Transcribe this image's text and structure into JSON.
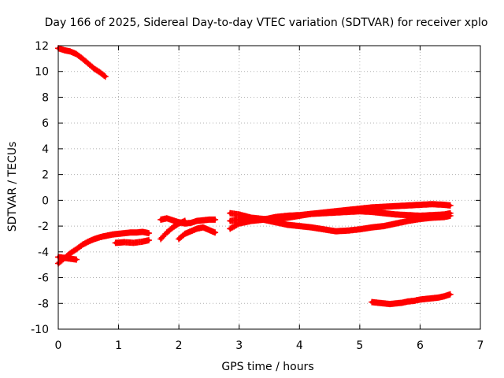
{
  "chart_data": {
    "type": "scatter",
    "title": "Day 166 of 2025, Sidereal Day-to-day VTEC variation (SDTVAR) for receiver xplo",
    "xlabel": "GPS time / hours",
    "ylabel": "SDTVAR / TECUs",
    "xlim": [
      0,
      7
    ],
    "ylim": [
      -10,
      12
    ],
    "xticks": [
      "0",
      "1",
      "2",
      "3",
      "4",
      "5",
      "6",
      "7"
    ],
    "yticks": [
      "12",
      "10",
      "8",
      "6",
      "4",
      "2",
      "0",
      "-2",
      "-4",
      "-6",
      "-8",
      "-10"
    ],
    "grid": true,
    "marker": "plus",
    "color": "#ff0000",
    "series": [
      {
        "name": "segment-1",
        "x": [
          0.0,
          0.1,
          0.2,
          0.3,
          0.4,
          0.5,
          0.6,
          0.7,
          0.78
        ],
        "y": [
          11.8,
          11.65,
          11.55,
          11.35,
          11.0,
          10.6,
          10.2,
          9.9,
          9.6
        ]
      },
      {
        "name": "segment-2",
        "x": [
          0.0,
          0.1,
          0.2,
          0.3,
          0.4,
          0.5,
          0.6,
          0.7,
          0.8,
          0.9,
          1.0,
          1.1,
          1.2,
          1.3,
          1.4,
          1.5
        ],
        "y": [
          -4.9,
          -4.5,
          -4.1,
          -3.8,
          -3.45,
          -3.2,
          -3.0,
          -2.85,
          -2.75,
          -2.65,
          -2.6,
          -2.55,
          -2.5,
          -2.5,
          -2.45,
          -2.55
        ]
      },
      {
        "name": "segment-3",
        "x": [
          0.0,
          0.15,
          0.3
        ],
        "y": [
          -4.4,
          -4.5,
          -4.6
        ]
      },
      {
        "name": "segment-4",
        "x": [
          0.95,
          1.1,
          1.25,
          1.4,
          1.5
        ],
        "y": [
          -3.3,
          -3.25,
          -3.3,
          -3.2,
          -3.1
        ]
      },
      {
        "name": "segment-5",
        "x": [
          1.7,
          1.8,
          1.9,
          2.0,
          2.1,
          2.2,
          2.3,
          2.4,
          2.5,
          2.6
        ],
        "y": [
          -1.5,
          -1.4,
          -1.55,
          -1.7,
          -1.8,
          -1.75,
          -1.6,
          -1.55,
          -1.5,
          -1.5
        ]
      },
      {
        "name": "segment-6",
        "x": [
          1.7,
          1.8,
          1.9,
          2.0,
          2.1
        ],
        "y": [
          -3.0,
          -2.5,
          -2.1,
          -1.8,
          -1.6
        ]
      },
      {
        "name": "segment-7",
        "x": [
          2.0,
          2.1,
          2.2,
          2.3,
          2.4,
          2.5,
          2.6
        ],
        "y": [
          -3.0,
          -2.6,
          -2.4,
          -2.2,
          -2.1,
          -2.3,
          -2.5
        ]
      },
      {
        "name": "segment-8",
        "x": [
          2.85,
          3.0,
          3.2,
          3.4,
          3.6,
          3.8,
          4.0,
          4.2,
          4.4,
          4.6,
          4.8,
          5.0,
          5.2,
          5.4,
          5.6,
          5.8,
          6.0,
          6.2,
          6.4,
          6.5
        ],
        "y": [
          -1.0,
          -1.1,
          -1.35,
          -1.45,
          -1.45,
          -1.35,
          -1.2,
          -1.05,
          -0.95,
          -0.85,
          -0.75,
          -0.65,
          -0.55,
          -0.5,
          -0.45,
          -0.4,
          -0.35,
          -0.3,
          -0.35,
          -0.4
        ]
      },
      {
        "name": "segment-9",
        "x": [
          2.85,
          3.0,
          3.2,
          3.4,
          3.6,
          3.8,
          4.0,
          4.2,
          4.4,
          4.6,
          4.8,
          5.0,
          5.2,
          5.4,
          5.6,
          5.8,
          6.0,
          6.2,
          6.4,
          6.5
        ],
        "y": [
          -2.2,
          -1.8,
          -1.6,
          -1.5,
          -1.7,
          -1.9,
          -2.0,
          -2.1,
          -2.25,
          -2.4,
          -2.35,
          -2.25,
          -2.1,
          -2.0,
          -1.8,
          -1.6,
          -1.45,
          -1.35,
          -1.3,
          -1.2
        ]
      },
      {
        "name": "segment-10",
        "x": [
          2.85,
          3.0,
          3.2,
          3.4,
          3.6,
          3.8,
          4.0,
          4.2,
          4.4,
          4.6,
          4.8,
          5.0,
          5.2,
          5.4,
          5.6,
          5.8,
          6.0,
          6.2,
          6.4,
          6.5
        ],
        "y": [
          -1.6,
          -1.5,
          -1.55,
          -1.5,
          -1.3,
          -1.2,
          -1.15,
          -1.05,
          -1.0,
          -0.95,
          -0.9,
          -0.85,
          -0.9,
          -1.0,
          -1.1,
          -1.15,
          -1.2,
          -1.15,
          -1.1,
          -1.0
        ]
      },
      {
        "name": "segment-11",
        "x": [
          5.2,
          5.3,
          5.4,
          5.5,
          5.6,
          5.7,
          5.8,
          5.9,
          6.0,
          6.1,
          6.2,
          6.3,
          6.4,
          6.5
        ],
        "y": [
          -7.9,
          -7.95,
          -8.0,
          -8.05,
          -8.0,
          -7.95,
          -7.85,
          -7.8,
          -7.7,
          -7.65,
          -7.6,
          -7.55,
          -7.45,
          -7.3
        ]
      }
    ]
  }
}
